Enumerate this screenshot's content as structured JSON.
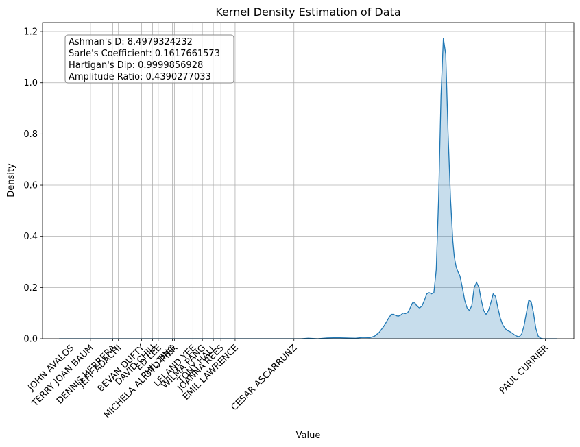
{
  "chart_data": {
    "type": "area",
    "title": "Kernel Density Estimation of Data",
    "xlabel": "Value",
    "ylabel": "Density",
    "ylim": [
      0,
      1.235
    ],
    "xlim": [
      -0.06,
      1.06
    ],
    "yticks": [
      0.0,
      0.2,
      0.4,
      0.6,
      0.8,
      1.0,
      1.2
    ],
    "ytick_labels": [
      "0.0",
      "0.2",
      "0.4",
      "0.6",
      "0.8",
      "1.0",
      "1.2"
    ],
    "grid": true,
    "colors": {
      "line": "#1f77b4",
      "fill": "#1f77b4",
      "grid": "#b0b0b0"
    },
    "xticks": [
      {
        "label": "JOHN AVALOS",
        "x": 0.0
      },
      {
        "label": "TERRY JOAN BAUM",
        "x": 0.041
      },
      {
        "label": "DENNIS HERRERA",
        "x": 0.088
      },
      {
        "label": "JEFF ADACHI",
        "x": 0.1
      },
      {
        "label": "BEVAN DUFTY",
        "x": 0.149
      },
      {
        "label": "DAVID CHIU",
        "x": 0.172
      },
      {
        "label": "ED LEE",
        "x": 0.184
      },
      {
        "label": "PHIL TING",
        "x": 0.214
      },
      {
        "label": "MICHELA ALIOTO-PIER",
        "x": 0.218
      },
      {
        "label": "LELAND YEE",
        "x": 0.257
      },
      {
        "label": "WILMA PANG",
        "x": 0.277
      },
      {
        "label": "TONY HALL",
        "x": 0.3
      },
      {
        "label": "JOANNA REES",
        "x": 0.316
      },
      {
        "label": "EMIL LAWRENCE",
        "x": 0.346
      },
      {
        "label": "CESAR ASCARRUNZ",
        "x": 0.47
      },
      {
        "label": "PAUL CURRIER",
        "x": 1.0
      }
    ],
    "series": [
      {
        "x": [
          -0.025,
          0.0,
          0.1,
          0.2,
          0.3,
          0.4,
          0.47,
          0.485,
          0.5,
          0.52,
          0.54,
          0.56,
          0.58,
          0.6,
          0.615,
          0.63,
          0.64,
          0.65,
          0.66,
          0.668,
          0.675,
          0.68,
          0.685,
          0.69,
          0.695,
          0.7,
          0.705,
          0.71,
          0.715,
          0.72,
          0.725,
          0.73,
          0.735,
          0.74,
          0.745,
          0.75,
          0.755,
          0.76,
          0.765,
          0.77,
          0.775,
          0.78,
          0.785,
          0.79,
          0.795,
          0.8,
          0.805,
          0.808,
          0.81,
          0.812,
          0.815,
          0.82,
          0.825,
          0.83,
          0.835,
          0.84,
          0.845,
          0.85,
          0.855,
          0.86,
          0.865,
          0.87,
          0.875,
          0.88,
          0.885,
          0.89,
          0.895,
          0.9,
          0.905,
          0.91,
          0.915,
          0.92,
          0.925,
          0.93,
          0.935,
          0.94,
          0.945,
          0.95,
          0.955,
          0.96,
          0.965,
          0.97,
          0.975,
          0.98,
          0.985,
          0.99,
          0.995,
          1.0,
          1.005,
          1.01,
          1.015,
          1.02,
          1.025
        ],
        "y": [
          0.0,
          0.0,
          0.0,
          0.0,
          0.0,
          0.0,
          0.0,
          0.0,
          0.002,
          0.0,
          0.003,
          0.004,
          0.003,
          0.002,
          0.005,
          0.004,
          0.01,
          0.025,
          0.05,
          0.075,
          0.095,
          0.095,
          0.09,
          0.088,
          0.092,
          0.1,
          0.098,
          0.102,
          0.12,
          0.14,
          0.14,
          0.125,
          0.12,
          0.128,
          0.15,
          0.175,
          0.18,
          0.175,
          0.18,
          0.27,
          0.55,
          0.95,
          1.175,
          1.11,
          0.8,
          0.55,
          0.38,
          0.32,
          0.3,
          0.28,
          0.265,
          0.245,
          0.2,
          0.15,
          0.12,
          0.11,
          0.13,
          0.2,
          0.22,
          0.2,
          0.15,
          0.11,
          0.095,
          0.11,
          0.14,
          0.175,
          0.165,
          0.12,
          0.08,
          0.055,
          0.04,
          0.032,
          0.028,
          0.022,
          0.015,
          0.01,
          0.008,
          0.018,
          0.05,
          0.1,
          0.15,
          0.145,
          0.1,
          0.04,
          0.01,
          0.002,
          0.0,
          0.0,
          0.0,
          0.0,
          0.0,
          0.0,
          0.0
        ]
      }
    ]
  },
  "stats": {
    "lines": [
      "Ashman's D: 8.4979324232",
      "Sarle's Coefficient: 0.1617661573",
      "Hartigan's Dip: 0.9999856928",
      "Amplitude Ratio: 0.4390277033"
    ]
  }
}
